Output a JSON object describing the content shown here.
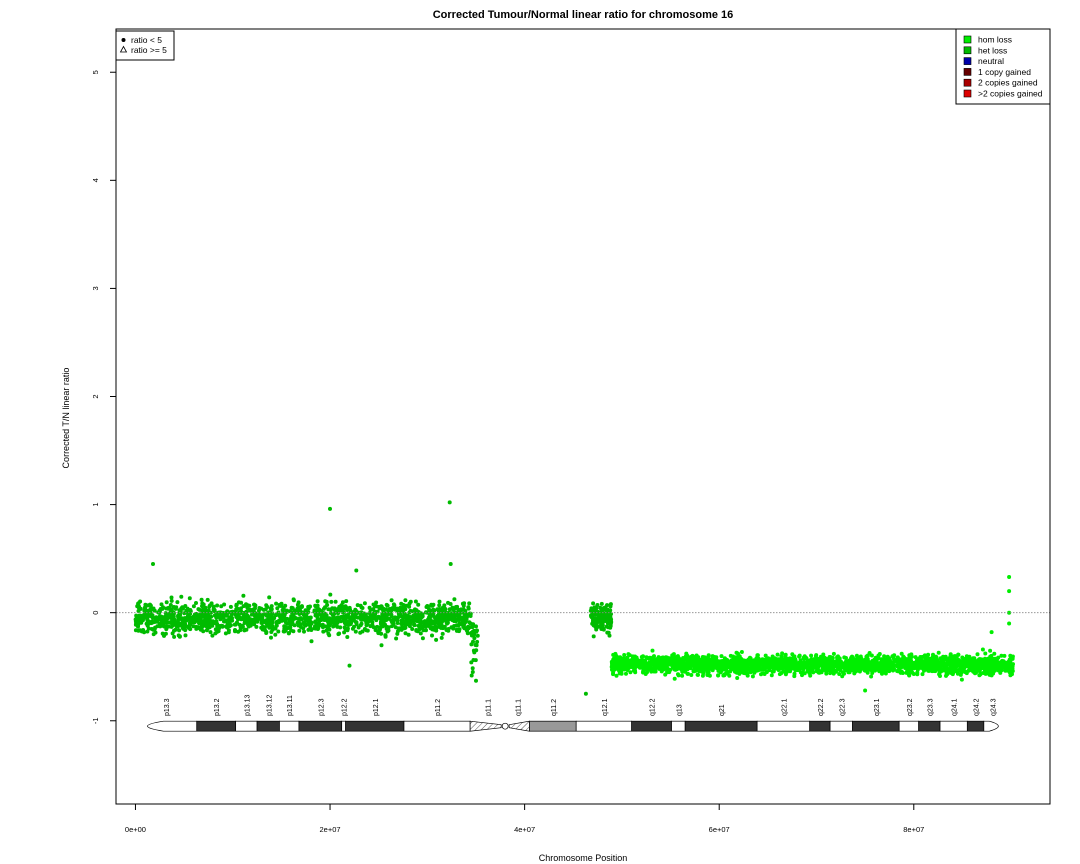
{
  "chart_data": {
    "type": "scatter",
    "title": "Corrected Tumour/Normal linear ratio for chromosome  16",
    "xlabel": "Chromosome Position",
    "ylabel": "Corrected T/N linear ratio",
    "xlim": [
      -2000000,
      94000000
    ],
    "ylim": [
      -1.77,
      5.4
    ],
    "x_ticks": [
      0,
      20000000,
      40000000,
      60000000,
      80000000
    ],
    "x_tick_labels": [
      "0e+00",
      "2e+07",
      "4e+07",
      "6e+07",
      "8e+07"
    ],
    "y_ticks": [
      -1,
      0,
      1,
      2,
      3,
      4,
      5
    ],
    "y_tick_labels": [
      "-1",
      "0",
      "1",
      "2",
      "3",
      "4",
      "5"
    ],
    "reference_line": {
      "y": 0,
      "style": "dotted",
      "color": "#888888"
    },
    "grid": false,
    "shape_legend": {
      "position": "top-left",
      "items": [
        {
          "symbol": "dot",
          "label": "ratio < 5"
        },
        {
          "symbol": "triangle",
          "label": "ratio >= 5"
        }
      ]
    },
    "legend": {
      "position": "top-right",
      "items": [
        {
          "label": "hom loss",
          "color": "#00ee00"
        },
        {
          "label": "het loss",
          "color": "#00bb00"
        },
        {
          "label": "neutral",
          "color": "#0000aa"
        },
        {
          "label": "1 copy gained",
          "color": "#660000"
        },
        {
          "label": "2 copies gained",
          "color": "#aa0000"
        },
        {
          "label": ">2 copies gained",
          "color": "#dd0000"
        }
      ]
    },
    "segments": [
      {
        "state": "het loss",
        "color": "#00bb00",
        "x_start": 0,
        "x_end": 34500000,
        "mean": -0.05,
        "spread": 0.11,
        "points": 1500
      },
      {
        "state": "het loss",
        "color": "#00bb00",
        "x_start": 34500000,
        "x_end": 35200000,
        "mean": -0.35,
        "spread": 0.12,
        "points": 30
      },
      {
        "state": "het loss",
        "color": "#00bb00",
        "x_start": 46800000,
        "x_end": 48900000,
        "mean": -0.05,
        "spread": 0.1,
        "points": 150
      },
      {
        "state": "hom loss",
        "color": "#00ee00",
        "x_start": 48900000,
        "x_end": 90200000,
        "mean": -0.48,
        "spread": 0.065,
        "points": 2400
      }
    ],
    "outliers": [
      {
        "x": 1800000,
        "y": 0.45,
        "color": "#00bb00"
      },
      {
        "x": 20000000,
        "y": 0.96,
        "color": "#00bb00"
      },
      {
        "x": 32300000,
        "y": 1.02,
        "color": "#00bb00"
      },
      {
        "x": 32400000,
        "y": 0.45,
        "color": "#00bb00"
      },
      {
        "x": 22700000,
        "y": 0.39,
        "color": "#00bb00"
      },
      {
        "x": 22000000,
        "y": -0.49,
        "color": "#00bb00"
      },
      {
        "x": 35000000,
        "y": -0.63,
        "color": "#00bb00"
      },
      {
        "x": 46300000,
        "y": -0.75,
        "color": "#00bb00"
      },
      {
        "x": 89800000,
        "y": 0.33,
        "color": "#00ee00"
      },
      {
        "x": 89800000,
        "y": 0.2,
        "color": "#00ee00"
      },
      {
        "x": 89800000,
        "y": 0.0,
        "color": "#00ee00"
      },
      {
        "x": 89800000,
        "y": -0.1,
        "color": "#00ee00"
      },
      {
        "x": 75000000,
        "y": -0.72,
        "color": "#00ee00"
      },
      {
        "x": 88000000,
        "y": -0.18,
        "color": "#00ee00"
      }
    ],
    "ideogram": {
      "y_position": -1.05,
      "bands": [
        {
          "label": "p13.3",
          "start": 0,
          "end": 6300000,
          "stain": "gneg"
        },
        {
          "label": "p13.2",
          "start": 6300000,
          "end": 10300000,
          "stain": "gpos"
        },
        {
          "label": "p13.13",
          "start": 10300000,
          "end": 12500000,
          "stain": "gneg"
        },
        {
          "label": "p13.12",
          "start": 12500000,
          "end": 14800000,
          "stain": "gpos"
        },
        {
          "label": "p13.11",
          "start": 14800000,
          "end": 16800000,
          "stain": "gneg"
        },
        {
          "label": "p12.3",
          "start": 16800000,
          "end": 21200000,
          "stain": "gpos"
        },
        {
          "label": "p12.2",
          "start": 21200000,
          "end": 21600000,
          "stain": "gneg"
        },
        {
          "label": "p12.1",
          "start": 21600000,
          "end": 27600000,
          "stain": "gpos"
        },
        {
          "label": "p11.2",
          "start": 27600000,
          "end": 34400000,
          "stain": "gneg"
        },
        {
          "label": "p11.1",
          "start": 34400000,
          "end": 38000000,
          "stain": "stalk"
        },
        {
          "label": "q11.1",
          "start": 38000000,
          "end": 40500000,
          "stain": "stalk"
        },
        {
          "label": "q11.2",
          "start": 40500000,
          "end": 45300000,
          "stain": "gvar"
        },
        {
          "label": "q12.1",
          "start": 45300000,
          "end": 51000000,
          "stain": "gneg"
        },
        {
          "label": "q12.2",
          "start": 51000000,
          "end": 55100000,
          "stain": "gpos"
        },
        {
          "label": "q13",
          "start": 55100000,
          "end": 56500000,
          "stain": "gneg"
        },
        {
          "label": "q21",
          "start": 56500000,
          "end": 63900000,
          "stain": "gpos"
        },
        {
          "label": "q22.1",
          "start": 63900000,
          "end": 69300000,
          "stain": "gneg"
        },
        {
          "label": "q22.2",
          "start": 69300000,
          "end": 71400000,
          "stain": "gpos"
        },
        {
          "label": "q22.3",
          "start": 71400000,
          "end": 73700000,
          "stain": "gneg"
        },
        {
          "label": "q23.1",
          "start": 73700000,
          "end": 78500000,
          "stain": "gpos"
        },
        {
          "label": "q23.2",
          "start": 78500000,
          "end": 80500000,
          "stain": "gneg"
        },
        {
          "label": "q23.3",
          "start": 80500000,
          "end": 82700000,
          "stain": "gpos"
        },
        {
          "label": "q24.1",
          "start": 82700000,
          "end": 85500000,
          "stain": "gneg"
        },
        {
          "label": "q24.2",
          "start": 85500000,
          "end": 87200000,
          "stain": "gpos"
        },
        {
          "label": "q24.3",
          "start": 87200000,
          "end": 89000000,
          "stain": "gneg"
        }
      ]
    }
  }
}
